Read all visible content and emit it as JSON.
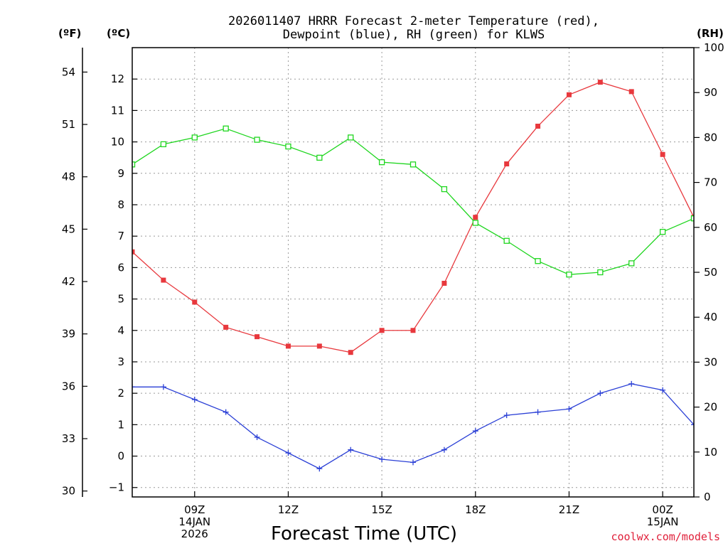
{
  "chart_data": {
    "type": "line",
    "title": [
      "2026011407 HRRR Forecast 2-meter Temperature (red),",
      "Dewpoint (blue), RH (green) for KLWS"
    ],
    "xlabel": "Forecast Time (UTC)",
    "units": {
      "fahrenheit": "(ºF)",
      "celsius": "(ºC)",
      "rh": "(RH)"
    },
    "credit": "coolwx.com/models",
    "x_ticks": [
      {
        "hour": 9,
        "lines": [
          "09Z",
          "14JAN",
          "2026"
        ]
      },
      {
        "hour": 12,
        "lines": [
          "12Z"
        ]
      },
      {
        "hour": 15,
        "lines": [
          "15Z"
        ]
      },
      {
        "hour": 18,
        "lines": [
          "18Z"
        ]
      },
      {
        "hour": 21,
        "lines": [
          "21Z"
        ]
      },
      {
        "hour": 24,
        "lines": [
          "00Z",
          "15JAN"
        ]
      }
    ],
    "xlim": [
      7,
      25
    ],
    "celsius_ylim": [
      -1.3,
      13.0
    ],
    "celsius_ticks": [
      -1,
      0,
      1,
      2,
      3,
      4,
      5,
      6,
      7,
      8,
      9,
      10,
      11,
      12
    ],
    "fahrenheit_ticks": [
      30,
      33,
      36,
      39,
      42,
      45,
      48,
      51,
      54
    ],
    "rh_ylim": [
      0,
      100
    ],
    "rh_ticks": [
      0,
      10,
      20,
      30,
      40,
      50,
      60,
      70,
      80,
      90,
      100
    ],
    "x": [
      7,
      8,
      9,
      10,
      11,
      12,
      13,
      14,
      15,
      16,
      17,
      18,
      19,
      20,
      21,
      22,
      23,
      24,
      25
    ],
    "series": [
      {
        "name": "Temperature",
        "color": "#e8383d",
        "axis": "celsius",
        "marker": "filled-square",
        "values": [
          6.5,
          5.6,
          4.9,
          4.1,
          3.8,
          3.5,
          3.5,
          3.3,
          4.0,
          4.0,
          5.5,
          7.6,
          9.3,
          10.5,
          11.5,
          11.9,
          11.6,
          9.6,
          7.6
        ]
      },
      {
        "name": "Dewpoint",
        "color": "#2a3fd6",
        "axis": "celsius",
        "marker": "plus",
        "values": [
          2.2,
          2.2,
          1.8,
          1.4,
          0.6,
          0.1,
          -0.4,
          0.2,
          -0.1,
          -0.2,
          0.2,
          0.8,
          1.3,
          1.4,
          1.5,
          2.0,
          2.3,
          2.1,
          1.0
        ]
      },
      {
        "name": "RH",
        "color": "#1fd61f",
        "axis": "rh",
        "marker": "open-square",
        "values": [
          74,
          78.5,
          80,
          82,
          79.5,
          78,
          75.5,
          80,
          74.5,
          74,
          68.5,
          61,
          57,
          52.5,
          49.5,
          50,
          52,
          59,
          62
        ]
      }
    ]
  }
}
